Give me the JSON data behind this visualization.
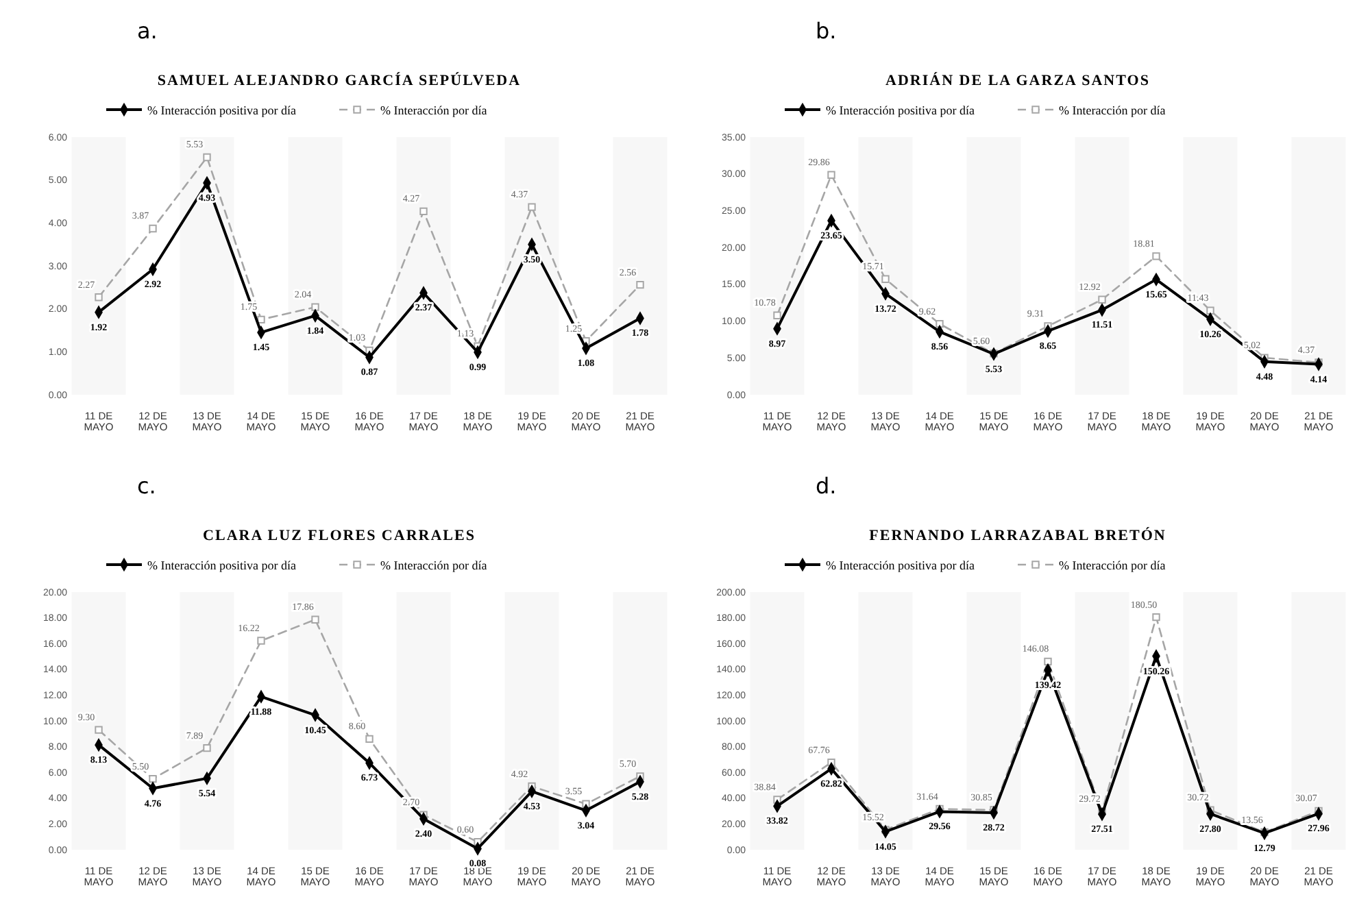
{
  "chart_data": [
    {
      "type": "line",
      "title": "SAMUEL ALEJANDRO GARCÍA SEPÚLVEDA",
      "annotations": [
        "a."
      ],
      "categories": [
        "11 DE MAYO",
        "12 DE MAYO",
        "13 DE MAYO",
        "14 DE MAYO",
        "15 DE MAYO",
        "16 DE MAYO",
        "17 DE MAYO",
        "18 DE MAYO",
        "19 DE MAYO",
        "20 DE MAYO",
        "21 DE MAYO"
      ],
      "ylim": [
        0,
        6
      ],
      "yticks": [
        {
          "value": 0,
          "label": "0.00"
        },
        {
          "value": 1,
          "label": "1.00"
        },
        {
          "value": 2,
          "label": "2.00"
        },
        {
          "value": 3,
          "label": "3.00"
        },
        {
          "value": 4,
          "label": "4.00"
        },
        {
          "value": 5,
          "label": "5.00"
        },
        {
          "value": 6,
          "label": "6.00"
        }
      ],
      "legend": "top",
      "series": [
        {
          "name": "% Interacción positiva por día",
          "color": "#000000",
          "marker": "diamond",
          "line_style": "solid",
          "values": [
            1.92,
            2.92,
            4.93,
            1.45,
            1.84,
            0.87,
            2.37,
            0.99,
            3.5,
            1.08,
            1.78
          ],
          "value_labels": [
            "1.92",
            "2.92",
            "4.93",
            "1.45",
            "1.84",
            "0.87",
            "2.37",
            "0.99",
            "3.50",
            "1.08",
            "1.78"
          ]
        },
        {
          "name": "% Interacción por día",
          "color": "#a6a6a6",
          "marker": "square",
          "line_style": "dashed",
          "values": [
            2.27,
            3.87,
            5.53,
            1.75,
            2.04,
            1.03,
            4.27,
            1.13,
            4.37,
            1.25,
            2.56
          ],
          "value_labels": [
            "2.27",
            "3.87",
            "5.53",
            "1.75",
            "2.04",
            "1.03",
            "4.27",
            "1.13",
            "4.37",
            "1.25",
            "2.56"
          ]
        }
      ]
    },
    {
      "type": "line",
      "title": "ADRIÁN DE LA GARZA SANTOS",
      "annotations": [
        "b."
      ],
      "categories": [
        "11 DE MAYO",
        "12 DE MAYO",
        "13 DE MAYO",
        "14 DE MAYO",
        "15 DE MAYO",
        "16 DE MAYO",
        "17 DE MAYO",
        "18 DE MAYO",
        "19 DE MAYO",
        "20 DE MAYO",
        "21 DE MAYO"
      ],
      "ylim": [
        0,
        35
      ],
      "yticks": [
        {
          "value": 0,
          "label": "0.00"
        },
        {
          "value": 5,
          "label": "5.00"
        },
        {
          "value": 10,
          "label": "10.00"
        },
        {
          "value": 15,
          "label": "15.00"
        },
        {
          "value": 20,
          "label": "20.00"
        },
        {
          "value": 25,
          "label": "25.00"
        },
        {
          "value": 30,
          "label": "30.00"
        },
        {
          "value": 35,
          "label": "35.00"
        }
      ],
      "legend": "top",
      "series": [
        {
          "name": "% Interacción positiva por día",
          "color": "#000000",
          "marker": "diamond",
          "line_style": "solid",
          "values": [
            8.97,
            23.65,
            13.72,
            8.56,
            5.53,
            8.65,
            11.51,
            15.65,
            10.26,
            4.48,
            4.14
          ],
          "value_labels": [
            "8.97",
            "23.65",
            "13.72",
            "8.56",
            "5.53",
            "8.65",
            "11.51",
            "15.65",
            "10.26",
            "4.48",
            "4.14"
          ]
        },
        {
          "name": "% Interacción por día",
          "color": "#a6a6a6",
          "marker": "square",
          "line_style": "dashed",
          "values": [
            10.78,
            29.86,
            15.71,
            9.62,
            5.6,
            9.31,
            12.92,
            18.81,
            11.43,
            5.02,
            4.37
          ],
          "value_labels": [
            "10.78",
            "29.86",
            "15.71",
            "9.62",
            "5.60",
            "9.31",
            "12.92",
            "18.81",
            "11.43",
            "5.02",
            "4.37"
          ]
        }
      ]
    },
    {
      "type": "line",
      "title": "CLARA LUZ FLORES CARRALES",
      "annotations": [
        "c."
      ],
      "categories": [
        "11 DE MAYO",
        "12 DE MAYO",
        "13 DE MAYO",
        "14 DE MAYO",
        "15 DE MAYO",
        "16 DE MAYO",
        "17 DE MAYO",
        "18 DE MAYO",
        "19 DE MAYO",
        "20 DE MAYO",
        "21 DE MAYO"
      ],
      "ylim": [
        0,
        20
      ],
      "yticks": [
        {
          "value": 0,
          "label": "0.00"
        },
        {
          "value": 2,
          "label": "2.00"
        },
        {
          "value": 4,
          "label": "4.00"
        },
        {
          "value": 6,
          "label": "6.00"
        },
        {
          "value": 8,
          "label": "8.00"
        },
        {
          "value": 10,
          "label": "10.00"
        },
        {
          "value": 12,
          "label": "12.00"
        },
        {
          "value": 14,
          "label": "14.00"
        },
        {
          "value": 16,
          "label": "16.00"
        },
        {
          "value": 18,
          "label": "18.00"
        },
        {
          "value": 20,
          "label": "20.00"
        }
      ],
      "legend": "top",
      "series": [
        {
          "name": "% Interacción positiva por día",
          "color": "#000000",
          "marker": "diamond",
          "line_style": "solid",
          "values": [
            8.13,
            4.76,
            5.54,
            11.88,
            10.45,
            6.73,
            2.4,
            0.08,
            4.53,
            3.04,
            5.28
          ],
          "value_labels": [
            "8.13",
            "4.76",
            "5.54",
            "11.88",
            "10.45",
            "6.73",
            "2.40",
            "0.08",
            "4.53",
            "3.04",
            "5.28"
          ]
        },
        {
          "name": "% Interacción por día",
          "color": "#a6a6a6",
          "marker": "square",
          "line_style": "dashed",
          "values": [
            9.3,
            5.5,
            7.89,
            16.22,
            17.86,
            8.6,
            2.7,
            0.6,
            4.92,
            3.55,
            5.7
          ],
          "value_labels": [
            "9.30",
            "5.50",
            "7.89",
            "16.22",
            "17.86",
            "8.60",
            "2.70",
            "0.60",
            "4.92",
            "3.55",
            "5.70"
          ]
        }
      ]
    },
    {
      "type": "line",
      "title": "FERNANDO LARRAZABAL BRETÓN",
      "annotations": [
        "d."
      ],
      "categories": [
        "11 DE MAYO",
        "12 DE MAYO",
        "13 DE MAYO",
        "14 DE MAYO",
        "15 DE MAYO",
        "16 DE MAYO",
        "17 DE MAYO",
        "18 DE MAYO",
        "19 DE MAYO",
        "20 DE MAYO",
        "21 DE MAYO"
      ],
      "ylim": [
        0,
        200
      ],
      "yticks": [
        {
          "value": 0,
          "label": "0.00"
        },
        {
          "value": 20,
          "label": "20.00"
        },
        {
          "value": 40,
          "label": "40.00"
        },
        {
          "value": 60,
          "label": "60.00"
        },
        {
          "value": 80,
          "label": "80.00"
        },
        {
          "value": 100,
          "label": "100.00"
        },
        {
          "value": 120,
          "label": "120.00"
        },
        {
          "value": 140,
          "label": "140.00"
        },
        {
          "value": 160,
          "label": "160.00"
        },
        {
          "value": 180,
          "label": "180.00"
        },
        {
          "value": 200,
          "label": "200.00"
        }
      ],
      "legend": "top",
      "series": [
        {
          "name": "% Interacción positiva por día",
          "color": "#000000",
          "marker": "diamond",
          "line_style": "solid",
          "values": [
            33.82,
            62.82,
            14.05,
            29.56,
            28.72,
            139.42,
            27.51,
            150.26,
            27.8,
            12.79,
            27.96
          ],
          "value_labels": [
            "33.82",
            "62.82",
            "14.05",
            "29.56",
            "28.72",
            "139.42",
            "27.51",
            "150.26",
            "27.80",
            "12.79",
            "27.96"
          ]
        },
        {
          "name": "% Interacción por día",
          "color": "#a6a6a6",
          "marker": "square",
          "line_style": "dashed",
          "values": [
            38.84,
            67.76,
            15.52,
            31.64,
            30.85,
            146.08,
            29.72,
            180.5,
            30.72,
            13.56,
            30.07
          ],
          "value_labels": [
            "38.84",
            "67.76",
            "15.52",
            "31.64",
            "30.85",
            "146.08",
            "29.72",
            "180.50",
            "30.72",
            "13.56",
            "30.07"
          ]
        }
      ]
    }
  ]
}
